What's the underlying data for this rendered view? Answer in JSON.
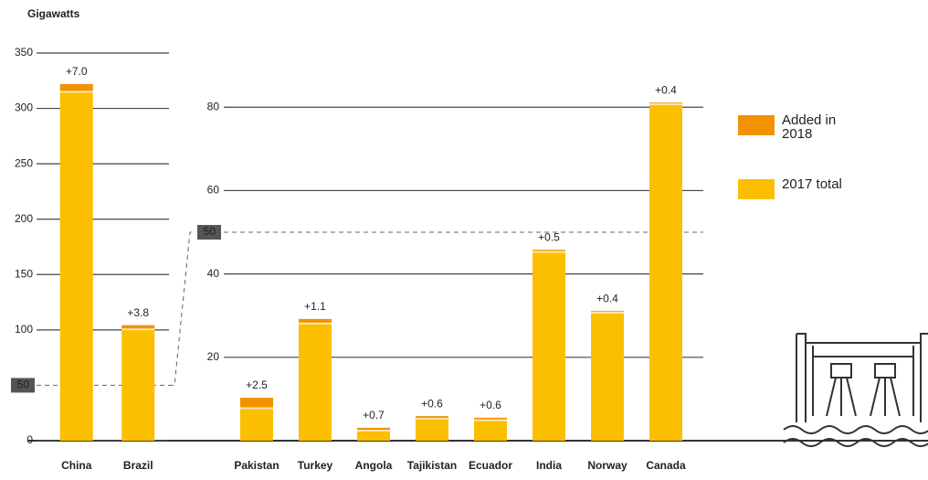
{
  "chart_data": [
    {
      "type": "bar",
      "stacked": true,
      "y_label": "Gigawatts",
      "categories": [
        "China",
        "Brazil"
      ],
      "series": [
        {
          "color": "#fbbf00",
          "values": [
            315,
            100.5
          ]
        },
        {
          "color": "#f39200",
          "values": [
            7.0,
            3.8
          ],
          "value_labels": [
            "+7.0",
            "+3.8"
          ]
        }
      ],
      "ylim": [
        0,
        350
      ],
      "yticks": [
        0,
        50,
        100,
        150,
        200,
        250,
        300,
        350
      ],
      "break_value": 50,
      "grid": true
    },
    {
      "type": "bar",
      "stacked": true,
      "categories": [
        "Pakistan",
        "Turkey",
        "Angola",
        "Tajikistan",
        "Ecuador",
        "India",
        "Norway",
        "Canada"
      ],
      "series": [
        {
          "name": "2017 total",
          "color": "#fbbf00",
          "values": [
            7.8,
            28.1,
            2.4,
            5.3,
            4.9,
            45.3,
            30.7,
            80.7
          ]
        },
        {
          "name": "Added in 2018",
          "color": "#f39200",
          "values": [
            2.5,
            1.1,
            0.7,
            0.6,
            0.6,
            0.5,
            0.4,
            0.4
          ],
          "value_labels": [
            "+2.5",
            "+1.1",
            "+0.7",
            "+0.6",
            "+0.6",
            "+0.5",
            "+0.4",
            "+0.4"
          ]
        }
      ],
      "ylim": [
        0,
        93
      ],
      "yticks": [
        20,
        40,
        50,
        60,
        80
      ],
      "break_value": 50,
      "grid": true
    }
  ]
}
